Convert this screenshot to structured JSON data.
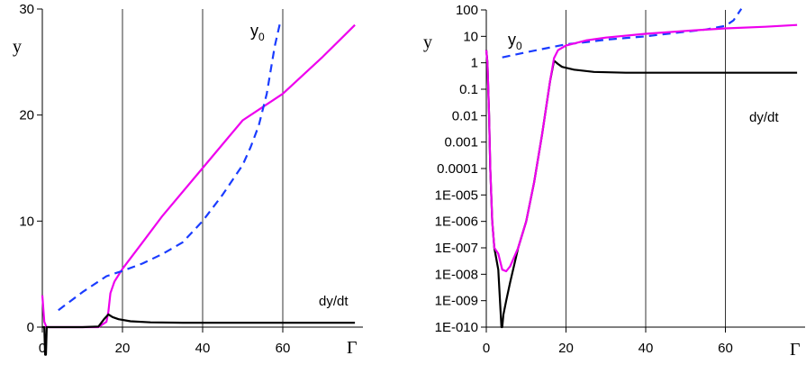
{
  "chart_data": [
    {
      "type": "line",
      "ylabel": "y",
      "xlabel": "Γ",
      "xlim": [
        0,
        80
      ],
      "ylim": [
        0,
        30
      ],
      "xticks": [
        "0",
        "20",
        "40",
        "60"
      ],
      "yticks": [
        "0",
        "10",
        "20",
        "30"
      ],
      "grid": "vertical lines at x = 20, 40, 60",
      "annotations": [
        {
          "text": "y",
          "sub": "0",
          "near": "dashed blue curve, top"
        },
        {
          "text": "dy/dt",
          "near": "black curve, right"
        }
      ],
      "series": [
        {
          "style": "solid magenta",
          "color": "#ee00ee",
          "x": [
            0,
            0.5,
            1,
            1.3,
            2,
            5,
            10,
            14,
            16,
            16.5,
            17,
            18,
            20,
            25,
            30,
            40,
            50,
            60,
            70,
            78
          ],
          "y": [
            3.0,
            0.5,
            0.02,
            0,
            0,
            0,
            0,
            0,
            0.5,
            1.5,
            3.2,
            4.3,
            5.5,
            8.0,
            10.5,
            15.0,
            19.5,
            22.0,
            25.5,
            28.5
          ]
        },
        {
          "style": "dashed blue",
          "color": "#1a3cff",
          "x": [
            4,
            10,
            16,
            20,
            25,
            30,
            35,
            40,
            45,
            50,
            52,
            54,
            56,
            58,
            59.5
          ],
          "y": [
            1.6,
            3.3,
            4.8,
            5.3,
            6.0,
            6.9,
            8.0,
            10.0,
            12.5,
            15.3,
            17.0,
            19.0,
            22.0,
            26.5,
            29.0
          ]
        },
        {
          "style": "solid black",
          "color": "#000000",
          "x": [
            0,
            0.5,
            0.7,
            0.9,
            1.1,
            2,
            5,
            10,
            14,
            15.5,
            16.5,
            17.5,
            19,
            22,
            27,
            35,
            50,
            70,
            78
          ],
          "y": [
            0,
            0,
            -2.6,
            -2.6,
            0,
            0,
            0,
            0,
            0.05,
            0.8,
            1.2,
            0.95,
            0.75,
            0.55,
            0.45,
            0.42,
            0.42,
            0.42,
            0.42
          ]
        }
      ]
    },
    {
      "type": "line",
      "scale": "log-y",
      "ylabel": "y",
      "xlabel": "Γ",
      "xlim": [
        0,
        80
      ],
      "ylim": [
        1e-10,
        100
      ],
      "xticks": [
        "0",
        "20",
        "40",
        "60"
      ],
      "yticks": [
        "1E-010",
        "1E-009",
        "1E-008",
        "1E-007",
        "1E-006",
        "1E-005",
        "0.0001",
        "0.001",
        "0.01",
        "0.1",
        "1",
        "10",
        "100"
      ],
      "grid": "vertical lines at x = 20, 40, 60",
      "annotations": [
        {
          "text": "y",
          "sub": "0",
          "near": "dashed blue curve, left"
        },
        {
          "text": "dy/dt",
          "near": "black curve, right"
        }
      ],
      "series": [
        {
          "style": "solid magenta",
          "color": "#ee00ee",
          "x": [
            0,
            0.3,
            0.7,
            1,
            1.5,
            2,
            3,
            4,
            5,
            6,
            8,
            10,
            12,
            14,
            15,
            16,
            17,
            18,
            20,
            25,
            30,
            40,
            50,
            60,
            70,
            78
          ],
          "y": [
            3,
            1,
            0.01,
            0.0001,
            1e-06,
            1e-07,
            6e-08,
            1.5e-08,
            1.3e-08,
            2e-08,
            1e-07,
            1e-06,
            3e-05,
            0.002,
            0.02,
            0.2,
            1.5,
            3.0,
            4.5,
            7.0,
            9.0,
            12.5,
            16.0,
            20.0,
            23.0,
            27.0
          ]
        },
        {
          "style": "dashed blue",
          "color": "#1a3cff",
          "x": [
            4,
            10,
            16,
            20,
            25,
            30,
            40,
            50,
            55,
            60,
            62,
            64
          ],
          "y": [
            1.6,
            2.5,
            3.8,
            5.0,
            6.0,
            7.5,
            10.0,
            15.0,
            18.0,
            25.0,
            40.0,
            110.0
          ]
        },
        {
          "style": "solid black",
          "color": "#000000",
          "x": [
            0,
            0.3,
            0.7,
            1,
            1.5,
            2,
            3,
            3.8,
            4,
            4.3,
            5,
            6,
            8,
            10,
            12,
            14,
            15,
            16,
            17,
            18,
            19,
            22,
            27,
            35,
            50,
            70,
            78
          ],
          "y": [
            3,
            1,
            0.01,
            0.0001,
            1e-06,
            1e-07,
            1.5e-08,
            1e-10,
            1e-10,
            3e-10,
            1e-09,
            5e-09,
            1e-07,
            1e-06,
            3e-05,
            0.002,
            0.02,
            0.2,
            1.2,
            0.9,
            0.7,
            0.55,
            0.45,
            0.42,
            0.42,
            0.42,
            0.42
          ]
        }
      ]
    }
  ]
}
